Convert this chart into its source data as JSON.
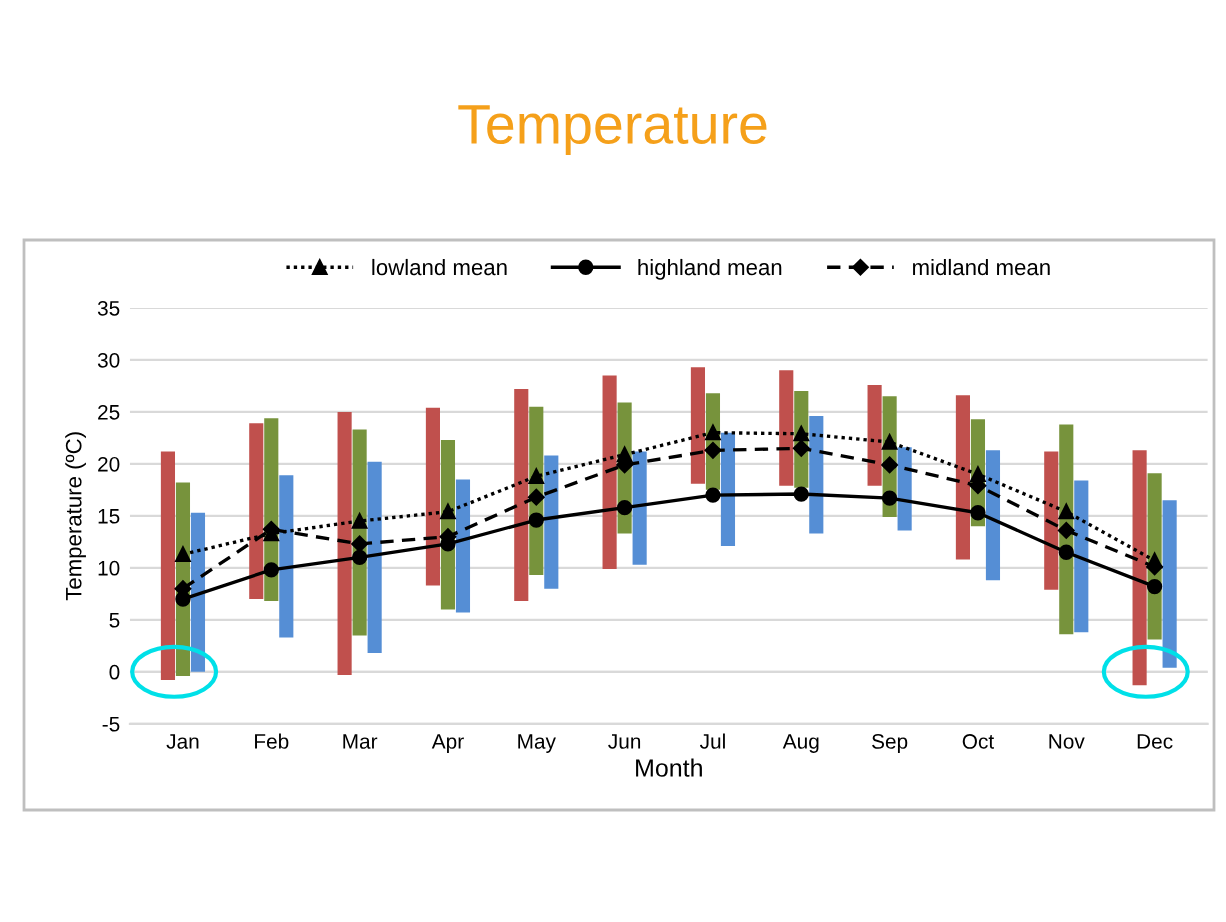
{
  "chart_data": {
    "type": "bar",
    "title": "Temperature",
    "xlabel": "Month",
    "ylabel": "Temperature (ºC)",
    "categories": [
      "Jan",
      "Feb",
      "Mar",
      "Apr",
      "May",
      "Jun",
      "Jul",
      "Aug",
      "Sep",
      "Oct",
      "Nov",
      "Dec"
    ],
    "series": [
      {
        "color": "#c0504d",
        "base": [
          -0.8,
          7.0,
          -0.3,
          8.3,
          6.8,
          9.9,
          18.1,
          17.9,
          17.9,
          10.8,
          7.9,
          -1.3
        ],
        "values": [
          22.0,
          16.9,
          25.3,
          17.1,
          20.4,
          18.6,
          11.2,
          11.1,
          9.7,
          15.8,
          13.3,
          22.6
        ]
      },
      {
        "color": "#77933c",
        "base": [
          -0.4,
          6.8,
          3.5,
          6.0,
          9.3,
          13.3,
          17.5,
          17.7,
          14.9,
          14.0,
          3.6,
          3.1
        ],
        "values": [
          18.6,
          17.6,
          19.8,
          16.3,
          16.2,
          12.6,
          9.3,
          9.3,
          11.6,
          10.3,
          20.2,
          16.0
        ]
      },
      {
        "color": "#558ed5",
        "base": [
          0.0,
          3.3,
          1.8,
          5.7,
          8.0,
          10.3,
          12.1,
          13.3,
          13.6,
          8.8,
          3.8,
          0.4
        ],
        "values": [
          15.3,
          15.6,
          18.4,
          12.8,
          12.8,
          10.9,
          10.9,
          11.3,
          8.0,
          12.5,
          14.6,
          16.1
        ]
      },
      {
        "type": "line",
        "name": "lowland mean",
        "color": "#000000",
        "marker": "triangle",
        "line_style": "dotted",
        "values": [
          11.3,
          13.3,
          14.5,
          15.4,
          18.8,
          20.9,
          23.0,
          22.9,
          22.1,
          19.0,
          15.4,
          10.7
        ]
      },
      {
        "type": "line",
        "name": "highland mean",
        "color": "#000000",
        "marker": "circle",
        "line_style": "solid",
        "values": [
          7.0,
          9.8,
          11.0,
          12.3,
          14.6,
          15.8,
          17.0,
          17.1,
          16.7,
          15.3,
          11.5,
          8.2
        ]
      },
      {
        "type": "line",
        "name": "midland mean",
        "color": "#000000",
        "marker": "diamond",
        "line_style": "dashed",
        "values": [
          8.0,
          13.7,
          12.3,
          13.0,
          16.8,
          19.9,
          21.3,
          21.5,
          19.9,
          17.9,
          13.6,
          10.1
        ]
      }
    ],
    "ylim": [
      -5,
      35
    ],
    "yticks": [
      -5,
      0,
      5,
      10,
      15,
      20,
      25,
      30,
      35
    ],
    "grid": "y",
    "legend": "top"
  }
}
